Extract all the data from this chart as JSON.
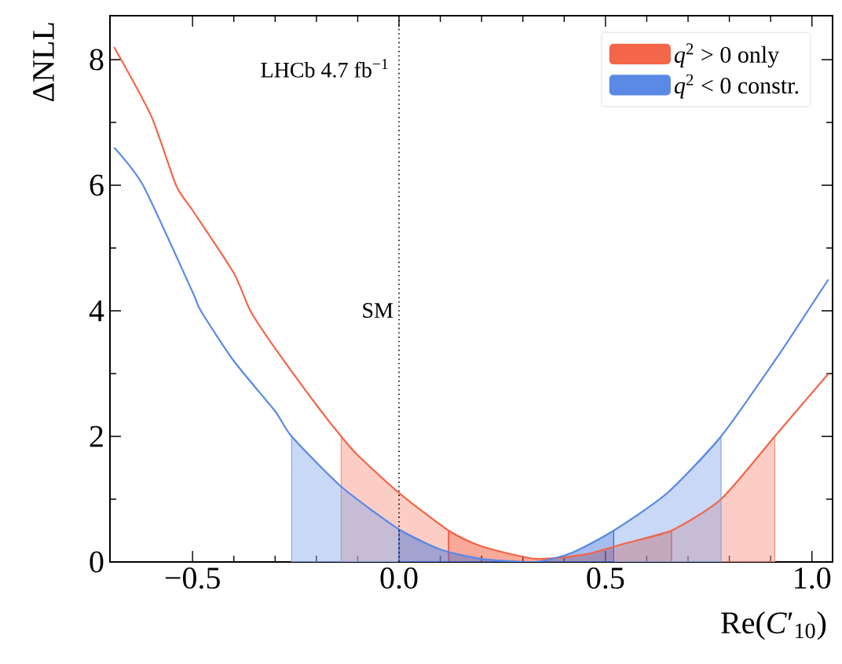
{
  "chart_data": {
    "type": "line",
    "xlabel": "Re(*C*′$_{10}$)",
    "ylabel": "ΔNLL",
    "xlim": [
      -0.7,
      1.05
    ],
    "ylim": [
      0,
      8.7
    ],
    "xticks": [
      {
        "value": -0.5,
        "label": "−0.5"
      },
      {
        "value": 0,
        "label": "0.0"
      },
      {
        "value": 0.5,
        "label": "0.5"
      },
      {
        "value": 1,
        "label": "1.0"
      }
    ],
    "yticks": [
      0,
      2,
      4,
      6,
      8
    ],
    "legend": "top right",
    "grid": false,
    "marker": "none",
    "line_style": "solid",
    "annotations": [
      "LHCb 4.7 fb$^{−1}$"
    ],
    "ref_lines": [
      {
        "axis": "x",
        "value": 0,
        "label": "SM",
        "color": "#000000",
        "line_style": "dotted"
      }
    ],
    "series": [
      {
        "type": "area",
        "color": "#f8907c",
        "x": [
          -0.14,
          -0.1,
          0,
          0.12
        ],
        "values": [
          2.0,
          1.7,
          1.1,
          0.5
        ]
      },
      {
        "type": "area",
        "color": "#f8907c",
        "x": [
          0.66,
          0.78,
          0.91
        ],
        "values": [
          0.5,
          1.0,
          2.0
        ]
      },
      {
        "type": "area",
        "color": "#f0401f",
        "x": [
          0.12,
          0.2,
          0.33,
          0.45,
          0.55,
          0.66
        ],
        "values": [
          0.5,
          0.25,
          0.05,
          0.12,
          0.3,
          0.5
        ]
      },
      {
        "type": "area",
        "color": "#86a8ec",
        "x": [
          -0.26,
          -0.14,
          0
        ],
        "values": [
          2.0,
          1.2,
          0.52
        ]
      },
      {
        "type": "area",
        "color": "#86a8ec",
        "x": [
          0.52,
          0.65,
          0.78
        ],
        "values": [
          0.5,
          1.1,
          2.0
        ]
      },
      {
        "type": "area",
        "color": "#3a6fdc",
        "x": [
          0,
          0.1,
          0.2,
          0.33,
          0.42,
          0.52
        ],
        "values": [
          0.52,
          0.2,
          0.05,
          0.0,
          0.15,
          0.5
        ]
      },
      {
        "name": "*q*$^{2}$ > 0 only",
        "color": "#f4664a",
        "x": [
          -0.69,
          -0.6,
          -0.54,
          -0.5,
          -0.4,
          -0.36,
          -0.3,
          -0.2,
          -0.14,
          -0.1,
          0,
          0.12,
          0.2,
          0.33,
          0.45,
          0.55,
          0.66,
          0.78,
          0.91,
          1.04
        ],
        "values": [
          8.2,
          7.1,
          6.0,
          5.6,
          4.6,
          4.0,
          3.4,
          2.5,
          2.0,
          1.7,
          1.1,
          0.5,
          0.25,
          0.05,
          0.12,
          0.3,
          0.5,
          1.0,
          2.0,
          3.0
        ]
      },
      {
        "name": "*q*$^{2}$ < 0 constr.",
        "color": "#5a8ae6",
        "x": [
          -0.69,
          -0.62,
          -0.5,
          -0.48,
          -0.4,
          -0.3,
          -0.26,
          -0.14,
          0,
          0.1,
          0.2,
          0.33,
          0.42,
          0.52,
          0.65,
          0.78,
          0.92,
          0.99,
          1.04
        ],
        "values": [
          6.6,
          6.0,
          4.3,
          4.0,
          3.2,
          2.4,
          2.0,
          1.2,
          0.52,
          0.2,
          0.05,
          0.0,
          0.15,
          0.5,
          1.1,
          2.0,
          3.3,
          4.0,
          4.5
        ]
      }
    ]
  }
}
